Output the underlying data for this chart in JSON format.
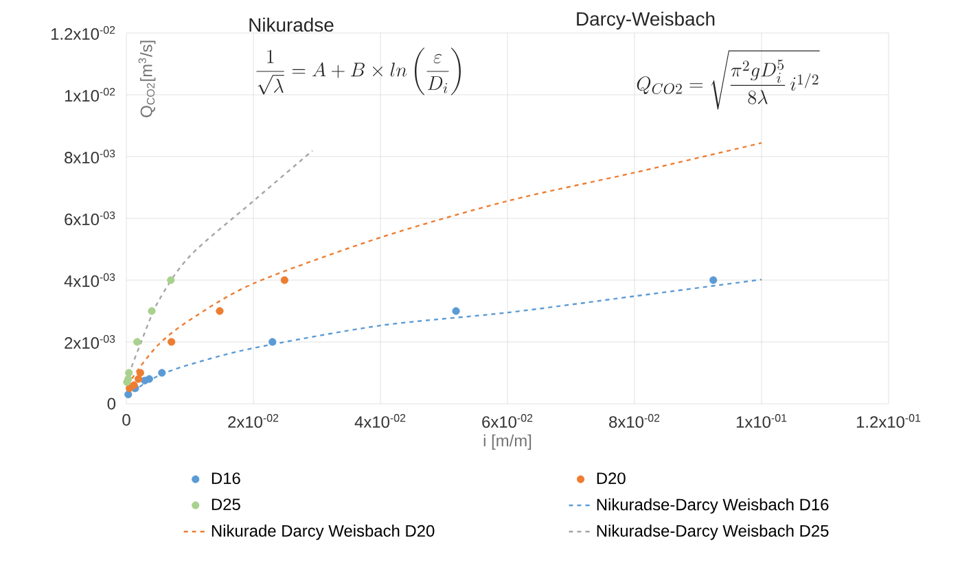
{
  "chart_data": {
    "type": "scatter",
    "annotations": [
      "Nikuradse",
      "\\frac{1}{\\sqrt{\\lambda}} = A + B \\times ln\\left(\\frac{\\varepsilon}{D_i}\\right)",
      "Darcy-Weisbach",
      "Q_{CO2} = \\sqrt{\\frac{\\pi^2 g D_i^5}{8\\lambda}\\, i^{1/2}}"
    ],
    "xlabel": "i [m/m]",
    "ylabel": "Q$_{CO2}$[m$^{3}$/s]",
    "xlim": [
      0,
      0.12
    ],
    "ylim": [
      0,
      0.012
    ],
    "xticks": [
      0,
      {
        "value": 0.02,
        "label": "2x10$^{-02}$"
      },
      {
        "value": 0.04,
        "label": "4x10$^{-02}$"
      },
      {
        "value": 0.06,
        "label": "6x10$^{-02}$"
      },
      {
        "value": 0.08,
        "label": "8x10$^{-02}$"
      },
      {
        "value": 0.1,
        "label": "1x10$^{-01}$"
      },
      {
        "value": 0.12,
        "label": "1.2x10$^{-01}$"
      }
    ],
    "yticks": [
      0,
      {
        "value": 0.002,
        "label": "2x10$^{-03}$"
      },
      {
        "value": 0.004,
        "label": "4x10$^{-03}$"
      },
      {
        "value": 0.006,
        "label": "6x10$^{-03}$"
      },
      {
        "value": 0.008,
        "label": "8x10$^{-03}$"
      },
      {
        "value": 0.01,
        "label": "1x10$^{-02}$"
      },
      {
        "value": 0.012,
        "label": "1.2x10$^{-02}$"
      }
    ],
    "grid": true,
    "legend": "bottom",
    "marker": "circle",
    "series": [
      {
        "name": "D16",
        "color": "#5b9bd5",
        "x": [
          0.0003,
          0.0014,
          0.0029,
          0.0036,
          0.0056,
          0.023,
          0.0519,
          0.0924
        ],
        "values": [
          0.0003,
          0.0005,
          0.00075,
          0.0008,
          0.001,
          0.002,
          0.003,
          0.004
        ]
      },
      {
        "name": "D20",
        "color": "#ed7d31",
        "x": [
          0.0005,
          0.0012,
          0.0019,
          0.0022,
          0.0071,
          0.0147,
          0.0249
        ],
        "values": [
          0.0005,
          0.0006,
          0.0008,
          0.001,
          0.002,
          0.003,
          0.004
        ]
      },
      {
        "name": "D25",
        "color": "#a9d18e",
        "x": [
          0.0001,
          0.0003,
          0.0004,
          0.0017,
          0.004,
          0.007
        ],
        "values": [
          0.0007,
          0.0008,
          0.001,
          0.002,
          0.003,
          0.004
        ]
      },
      {
        "name": "Nikuradse-Darcy Weisbach D16",
        "type": "line",
        "marker": "none",
        "line_style": "dashed",
        "color": "#5b9bd5",
        "x": [
          0.0002,
          0.001,
          0.005,
          0.01,
          0.02,
          0.04,
          0.06,
          0.08,
          0.1
        ],
        "values": [
          0.0002,
          0.0004,
          0.0009,
          0.00127,
          0.0018,
          0.00253,
          0.00295,
          0.00348,
          0.00402
        ]
      },
      {
        "name": "Nikurade Darcy Weisbach D20",
        "type": "line",
        "marker": "none",
        "line_style": "dashed",
        "color": "#ed7d31",
        "x": [
          0.0002,
          0.001,
          0.005,
          0.01,
          0.02,
          0.04,
          0.06,
          0.08,
          0.1
        ],
        "values": [
          0.0003,
          0.00085,
          0.0019,
          0.00271,
          0.00389,
          0.00538,
          0.00656,
          0.00748,
          0.00844
        ]
      },
      {
        "name": "Nikuradse-Darcy Weisbach D25",
        "type": "line",
        "marker": "none",
        "line_style": "dashed",
        "color": "#a5a5a5",
        "x": [
          0.0002,
          0.0006,
          0.002,
          0.005,
          0.01,
          0.02,
          0.0293
        ],
        "values": [
          0.0004,
          0.00103,
          0.00182,
          0.0033,
          0.00478,
          0.00656,
          0.00819
        ]
      }
    ]
  }
}
